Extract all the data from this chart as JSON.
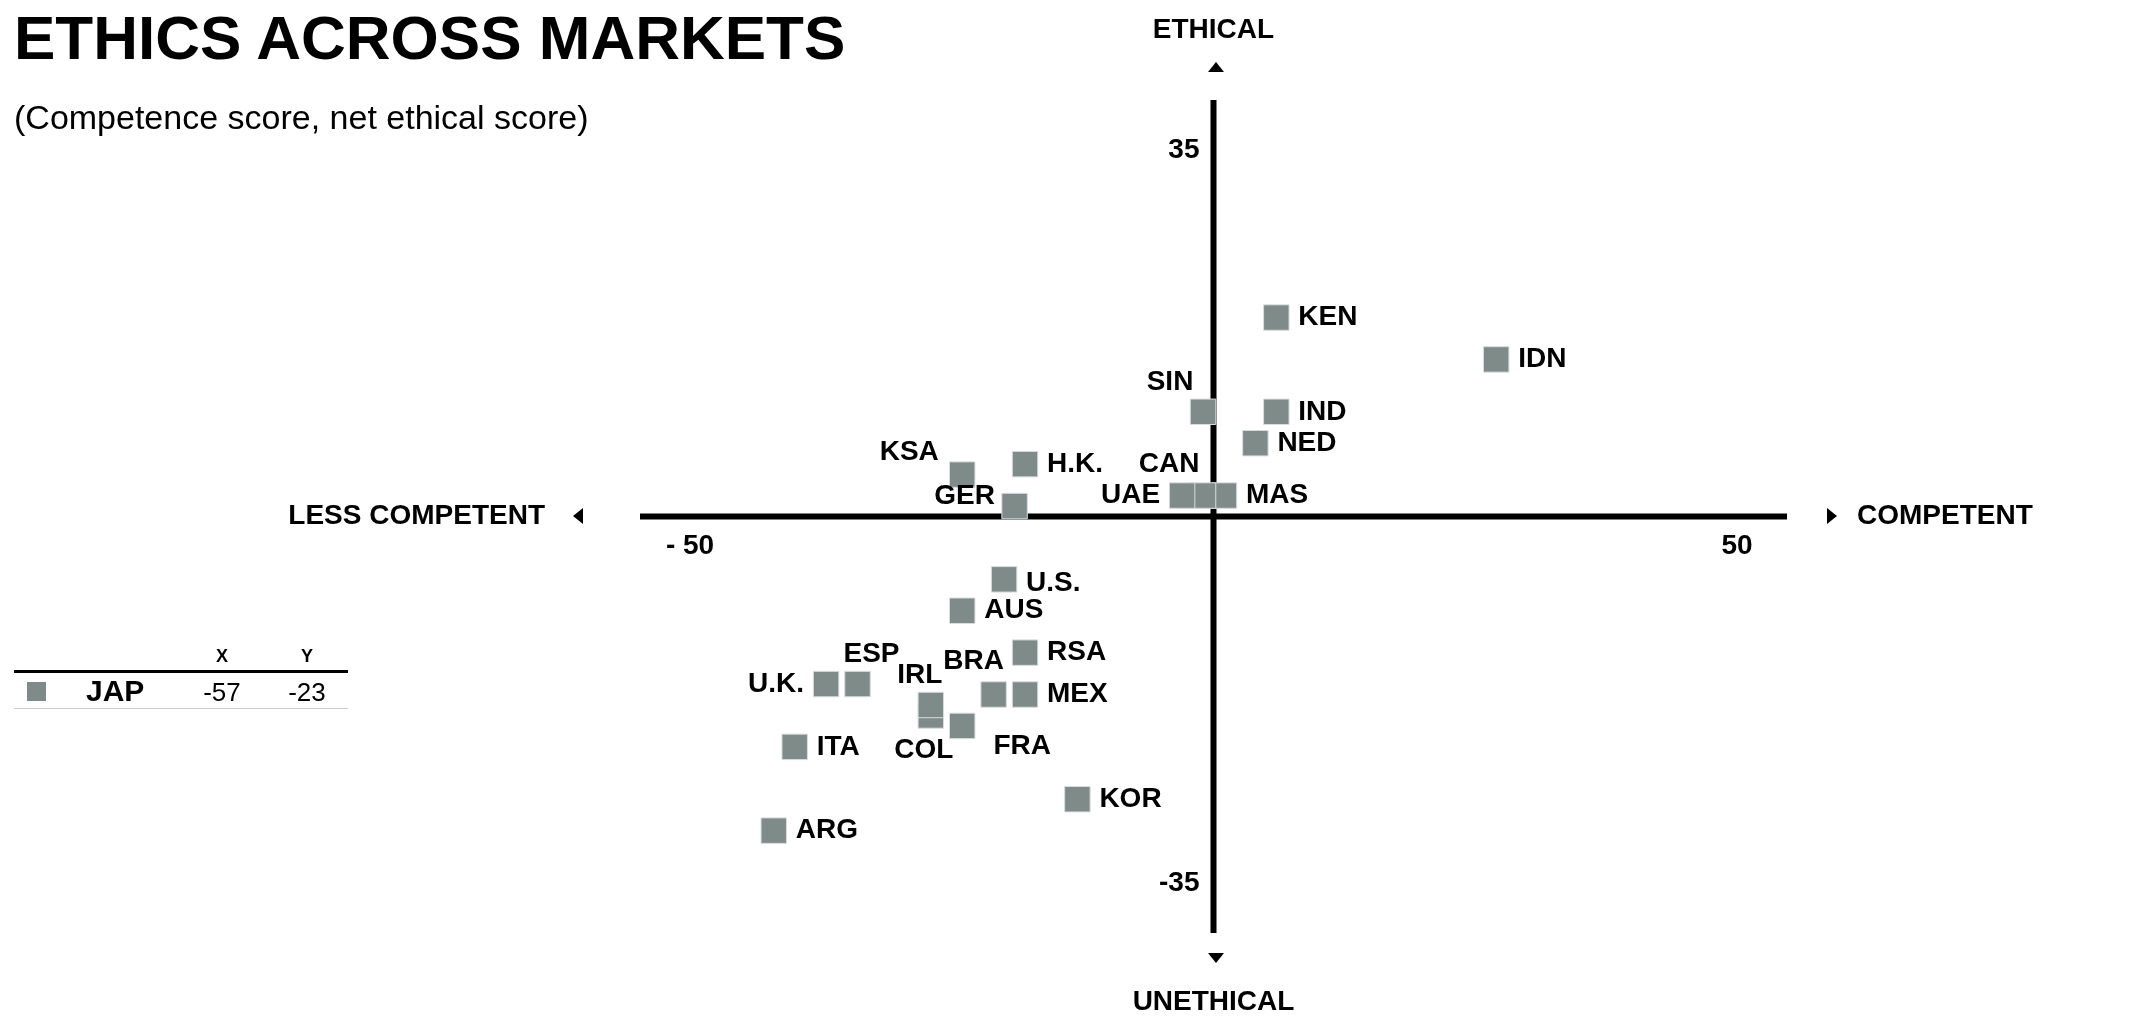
{
  "chart_data": {
    "type": "scatter",
    "title": "ETHICS ACROSS MARKETS",
    "subtitle": "(Competence score, net ethical score)",
    "xlim": [
      -50,
      50
    ],
    "ylim": [
      -35,
      35
    ],
    "xticks": [
      {
        "value": -50,
        "label": "- 50"
      },
      50
    ],
    "yticks": [
      -35,
      35
    ],
    "grid": false,
    "legend": false,
    "marker": "square",
    "annotations": [
      "LESS COMPETENT",
      "COMPETENT",
      "ETHICAL",
      "UNETHICAL",
      "X",
      "Y",
      "JAP",
      "-57",
      "-23"
    ],
    "series": [
      {
        "name": "KEN",
        "color": "#7f8b89",
        "x": [
          6
        ],
        "values": [
          19
        ]
      },
      {
        "name": "IDN",
        "color": "#7f8b89",
        "x": [
          27
        ],
        "values": [
          15
        ]
      },
      {
        "name": "SIN",
        "color": "#7f8b89",
        "x": [
          -1
        ],
        "values": [
          10
        ]
      },
      {
        "name": "IND",
        "color": "#7f8b89",
        "x": [
          6
        ],
        "values": [
          10
        ]
      },
      {
        "name": "NED",
        "color": "#7f8b89",
        "x": [
          4
        ],
        "values": [
          7
        ]
      },
      {
        "name": "KSA",
        "color": "#7f8b89",
        "x": [
          -24
        ],
        "values": [
          4
        ]
      },
      {
        "name": "H.K.",
        "color": "#7f8b89",
        "x": [
          -18
        ],
        "values": [
          5
        ]
      },
      {
        "name": "UAE",
        "color": "#7f8b89",
        "x": [
          -3
        ],
        "values": [
          2
        ]
      },
      {
        "name": "CAN",
        "color": "#7f8b89",
        "x": [
          -1
        ],
        "values": [
          2
        ]
      },
      {
        "name": "MAS",
        "color": "#7f8b89",
        "x": [
          1
        ],
        "values": [
          2
        ]
      },
      {
        "name": "GER",
        "color": "#7f8b89",
        "x": [
          -19
        ],
        "values": [
          1
        ]
      },
      {
        "name": "U.S.",
        "color": "#7f8b89",
        "x": [
          -20
        ],
        "values": [
          -6
        ]
      },
      {
        "name": "AUS",
        "color": "#7f8b89",
        "x": [
          -24
        ],
        "values": [
          -9
        ]
      },
      {
        "name": "RSA",
        "color": "#7f8b89",
        "x": [
          -18
        ],
        "values": [
          -13
        ]
      },
      {
        "name": "BRA",
        "color": "#7f8b89",
        "x": [
          -21
        ],
        "values": [
          -17
        ]
      },
      {
        "name": "MEX",
        "color": "#7f8b89",
        "x": [
          -18
        ],
        "values": [
          -17
        ]
      },
      {
        "name": "U.K.",
        "color": "#7f8b89",
        "x": [
          -37
        ],
        "values": [
          -16
        ]
      },
      {
        "name": "ESP",
        "color": "#7f8b89",
        "x": [
          -34
        ],
        "values": [
          -16
        ]
      },
      {
        "name": "IRL",
        "color": "#7f8b89",
        "x": [
          -27
        ],
        "values": [
          -18
        ]
      },
      {
        "name": "COL",
        "color": "#7f8b89",
        "x": [
          -27
        ],
        "values": [
          -19
        ]
      },
      {
        "name": "FRA",
        "color": "#7f8b89",
        "x": [
          -24
        ],
        "values": [
          -20
        ]
      },
      {
        "name": "ITA",
        "color": "#7f8b89",
        "x": [
          -40
        ],
        "values": [
          -22
        ]
      },
      {
        "name": "KOR",
        "color": "#7f8b89",
        "x": [
          -13
        ],
        "values": [
          -27
        ]
      },
      {
        "name": "ARG",
        "color": "#7f8b89",
        "x": [
          -42
        ],
        "values": [
          -30
        ]
      }
    ]
  }
}
